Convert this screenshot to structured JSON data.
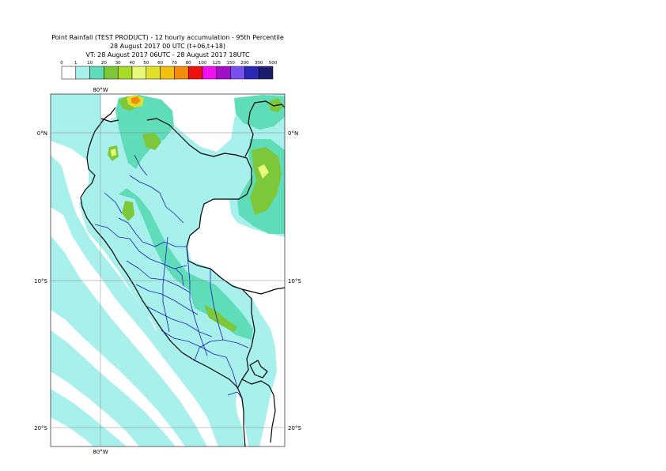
{
  "header": {
    "line1": "Point Rainfall (TEST PRODUCT) - 12 hourly accumulation - 95th Percentile",
    "line2": "28 August 2017 00 UTC (t+06,t+18)",
    "line3": "VT: 28 August 2017 06UTC - 28 August 2017 18UTC"
  },
  "legend": {
    "thresholds": [
      "0",
      "1",
      "10",
      "20",
      "30",
      "40",
      "50",
      "60",
      "70",
      "80",
      "100",
      "125",
      "150",
      "200",
      "300",
      "500"
    ],
    "colors": [
      "#ffffff",
      "#a8f0ec",
      "#5fdcb8",
      "#7cc83a",
      "#a8dc28",
      "#e8f878",
      "#e0e028",
      "#f4c010",
      "#f48c10",
      "#f01010",
      "#f010f0",
      "#a010c8",
      "#7850f0",
      "#2828b4",
      "#1c1c6c"
    ]
  },
  "map": {
    "lon_labels": [
      "80°W",
      "80°W"
    ],
    "lat_labels_left": [
      "0°N",
      "10°S",
      "20°S"
    ],
    "lat_labels_right": [
      "0°N",
      "10°S",
      "20°S"
    ],
    "ocean_color": "#a8f0ec",
    "land_color": "#ffffff",
    "coast_color": "#000000",
    "admin_color": "#1c1cb4"
  }
}
